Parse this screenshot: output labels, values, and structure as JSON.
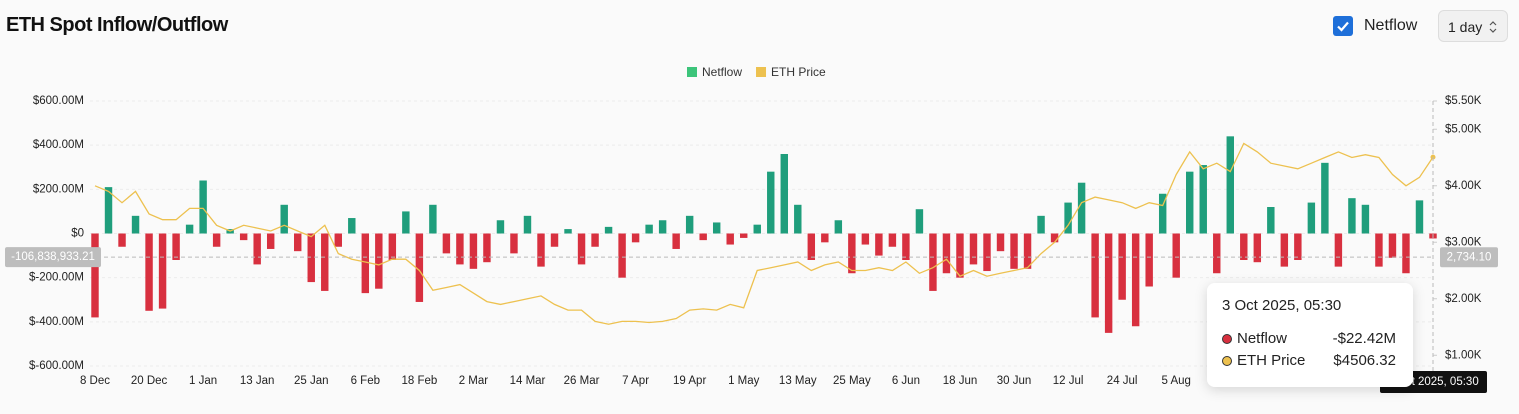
{
  "header": {
    "title": "ETH Spot Inflow/Outflow",
    "toggle_label": "Netflow",
    "interval": "1 day"
  },
  "chart_data": {
    "type": "combo",
    "categories": [
      "8 Dec",
      null,
      null,
      null,
      "20 Dec",
      null,
      null,
      null,
      "1 Jan",
      null,
      null,
      null,
      "13 Jan",
      null,
      null,
      null,
      "25 Jan",
      null,
      null,
      null,
      "6 Feb",
      null,
      null,
      null,
      "18 Feb",
      null,
      null,
      null,
      "2 Mar",
      null,
      null,
      null,
      "14 Mar",
      null,
      null,
      null,
      "26 Mar",
      null,
      null,
      null,
      "7 Apr",
      null,
      null,
      null,
      "19 Apr",
      null,
      null,
      null,
      "1 May",
      null,
      null,
      null,
      "13 May",
      null,
      null,
      null,
      "25 May",
      null,
      null,
      null,
      "6 Jun",
      null,
      null,
      null,
      "18 Jun",
      null,
      null,
      null,
      "30 Jun",
      null,
      null,
      null,
      "12 Jul",
      null,
      null,
      null,
      "24 Jul",
      null,
      null,
      null,
      "5 Aug",
      null,
      null,
      null,
      null,
      null,
      null,
      null,
      null,
      null,
      null,
      null,
      null,
      null,
      null,
      null,
      null,
      null,
      null,
      null
    ],
    "series": [
      {
        "name": "Netflow",
        "type": "bar",
        "color": "#1f9e7c",
        "negative_color": "#d8303f",
        "legend_color": "#3cc47a",
        "values": [
          -380000000.0,
          210000000.0,
          -60000000.0,
          80000000.0,
          -350000000.0,
          -340000000.0,
          -120000000.0,
          40000000.0,
          240000000.0,
          -60000000.0,
          20000000.0,
          -30000000.0,
          -140000000.0,
          -70000000.0,
          130000000.0,
          -80000000.0,
          -220000000.0,
          -260000000.0,
          -60000000.0,
          70000000.0,
          -270000000.0,
          -250000000.0,
          -120000000.0,
          100000000.0,
          -310000000.0,
          130000000.0,
          -90000000.0,
          -140000000.0,
          -160000000.0,
          -130000000.0,
          60000000.0,
          -90000000.0,
          80000000.0,
          -150000000.0,
          -60000000.0,
          20000000.0,
          -140000000.0,
          -60000000.0,
          30000000.0,
          -200000000.0,
          -40000000.0,
          40000000.0,
          60000000.0,
          -70000000.0,
          80000000.0,
          -30000000.0,
          50000000.0,
          -50000000.0,
          -20000000.0,
          40000000.0,
          280000000.0,
          360000000.0,
          130000000.0,
          -120000000.0,
          -40000000.0,
          60000000.0,
          -180000000.0,
          -50000000.0,
          -100000000.0,
          -60000000.0,
          -120000000.0,
          110000000.0,
          -260000000.0,
          -180000000.0,
          -200000000.0,
          -140000000.0,
          -170000000.0,
          -80000000.0,
          -160000000.0,
          -160000000.0,
          80000000.0,
          -40000000.0,
          140000000.0,
          230000000.0,
          -380000000.0,
          -450000000.0,
          -300000000.0,
          -420000000.0,
          -240000000.0,
          180000000.0,
          -200000000.0,
          280000000.0,
          310000000.0,
          -180000000.0,
          440000000.0,
          -120000000.0,
          -130000000.0,
          120000000.0,
          -150000000.0,
          -120000000.0,
          140000000.0,
          320000000.0,
          -150000000.0,
          160000000.0,
          130000000.0,
          -150000000.0,
          -110000000.0,
          -180000000.0,
          150000000.0,
          -22420000
        ]
      },
      {
        "name": "ETH Price",
        "type": "line",
        "axis": "y2",
        "color": "#edc14f",
        "values": [
          4000,
          3900,
          3700,
          3900,
          3500,
          3400,
          3400,
          3600,
          3600,
          3300,
          3200,
          3300,
          3250,
          3200,
          3300,
          3200,
          3100,
          3300,
          2800,
          2700,
          2650,
          2600,
          2700,
          2700,
          2500,
          2150,
          2200,
          2250,
          2100,
          1950,
          1900,
          1950,
          2000,
          2050,
          1900,
          1800,
          1800,
          1600,
          1550,
          1600,
          1600,
          1580,
          1600,
          1650,
          1800,
          1820,
          1800,
          1900,
          1840,
          2500,
          2550,
          2600,
          2650,
          2500,
          2600,
          2650,
          2500,
          2500,
          2550,
          2500,
          2650,
          2450,
          2550,
          2700,
          2400,
          2500,
          2400,
          2450,
          2500,
          2550,
          2800,
          3000,
          3300,
          3700,
          3800,
          3750,
          3700,
          3600,
          3700,
          3650,
          4200,
          4600,
          4300,
          4400,
          4250,
          4750,
          4600,
          4400,
          4350,
          4300,
          4400,
          4500,
          4600,
          4500,
          4550,
          4500,
          4200,
          4000,
          4150,
          4506.32
        ]
      }
    ],
    "ylim": [
      -600000000.0,
      600000000.0
    ],
    "yticks": [
      {
        "value": -600000000.0,
        "label": "$-600.00M"
      },
      {
        "value": -400000000.0,
        "label": "$-400.00M"
      },
      {
        "value": -200000000.0,
        "label": "$-200.00M"
      },
      {
        "value": 0,
        "label": "$0"
      },
      {
        "value": 200000000.0,
        "label": "$200.00M"
      },
      {
        "value": 400000000.0,
        "label": "$400.00M"
      },
      {
        "value": 600000000.0,
        "label": "$600.00M"
      }
    ],
    "y2lim": [
      810,
      5500
    ],
    "y2ticks": [
      {
        "value": 1000,
        "label": "$1.00K"
      },
      {
        "value": 2000,
        "label": "$2.00K"
      },
      {
        "value": 3000,
        "label": "$3.00K"
      },
      {
        "value": 4000,
        "label": "$4.00K"
      },
      {
        "value": 5000,
        "label": "$5.00K"
      },
      {
        "value": 5500,
        "label": "$5.50K"
      }
    ],
    "grid": true,
    "legend": "top",
    "crosshair": {
      "value": -106838933.21,
      "label": "-106,838,933.21",
      "y2_value": 2734.1,
      "y2_label": "2,734.10"
    },
    "tooltip": {
      "title": "3 Oct 2025, 05:30",
      "labels": [
        "-$22.42M",
        "$4506.32"
      ]
    }
  }
}
